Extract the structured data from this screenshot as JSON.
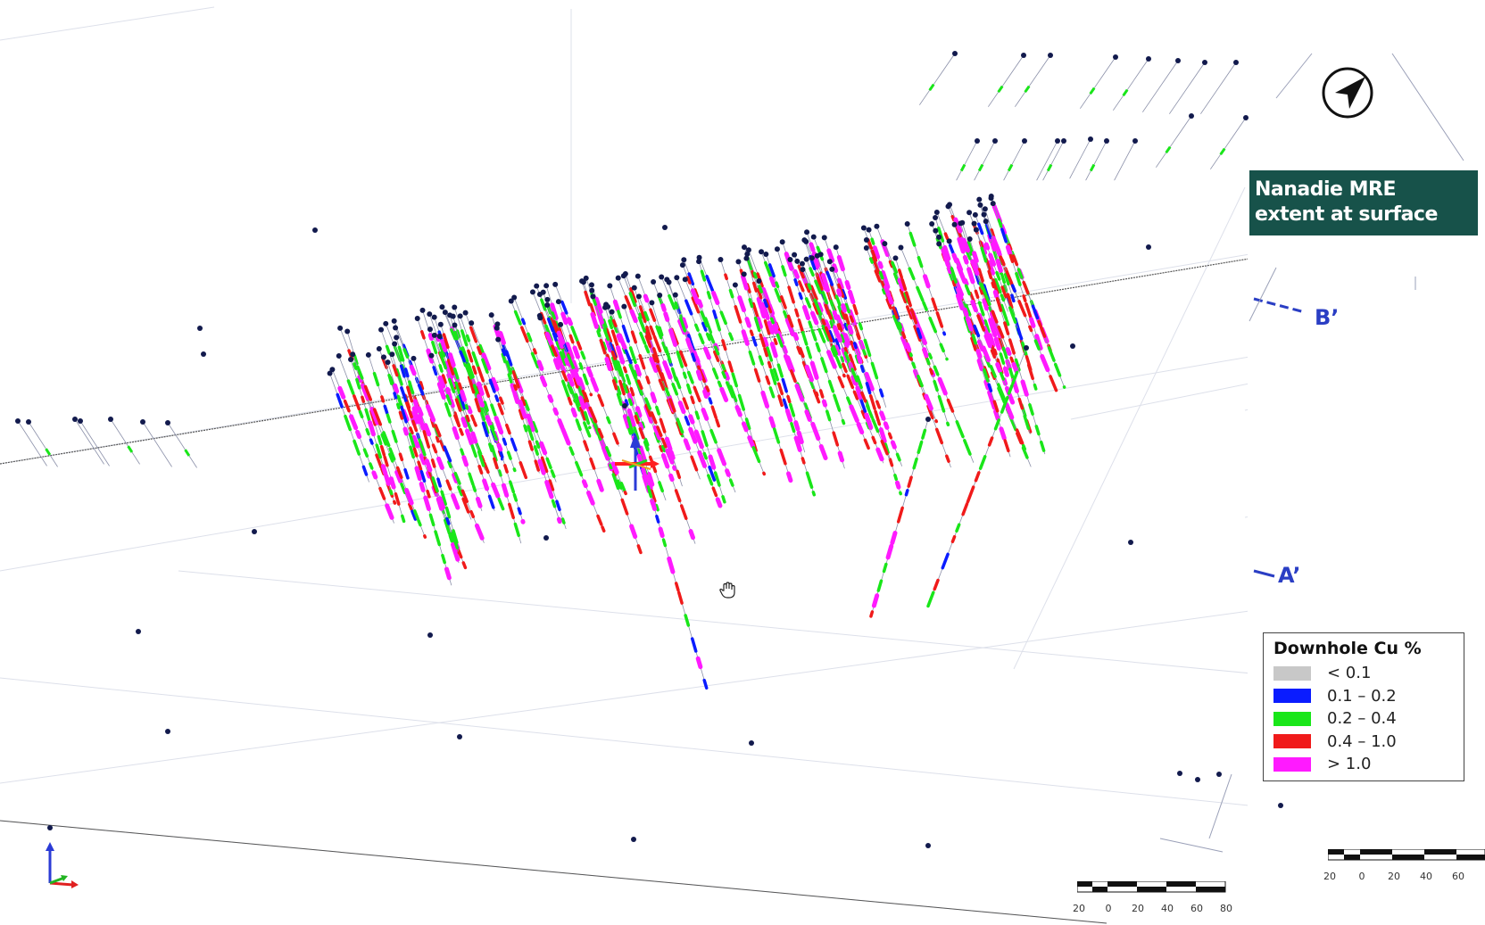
{
  "title_box": {
    "line1": "Nanadie MRE",
    "line2": "extent at surface"
  },
  "section_labels": {
    "b_prime": "B’",
    "a_prime": "A’"
  },
  "legend": {
    "title": "Downhole Cu %",
    "items": [
      {
        "label": "< 0.1",
        "color": "#c8c8c8"
      },
      {
        "label": "0.1 – 0.2",
        "color": "#0a1cff"
      },
      {
        "label": "0.2 – 0.4",
        "color": "#19e619"
      },
      {
        "label": "0.4 – 1.0",
        "color": "#f01a1a"
      },
      {
        "label": "> 1.0",
        "color": "#ff1aff"
      }
    ]
  },
  "scalebar_main": {
    "labels": [
      "20",
      "0",
      "20",
      "40",
      "60",
      "80"
    ]
  },
  "scalebar_inset": {
    "labels": [
      "20",
      "0",
      "20",
      "40",
      "60"
    ]
  },
  "icons": {
    "north_arrow": "north-arrow-icon",
    "axes": "xyz-axes-icon",
    "cursor": "hand-cursor-icon",
    "gizmo": "transform-gizmo-icon"
  },
  "colors": {
    "collar": "#121a4d",
    "trace": "#8a8fa8",
    "title_bg": "#17524a",
    "section_label": "#2a3ec4"
  }
}
